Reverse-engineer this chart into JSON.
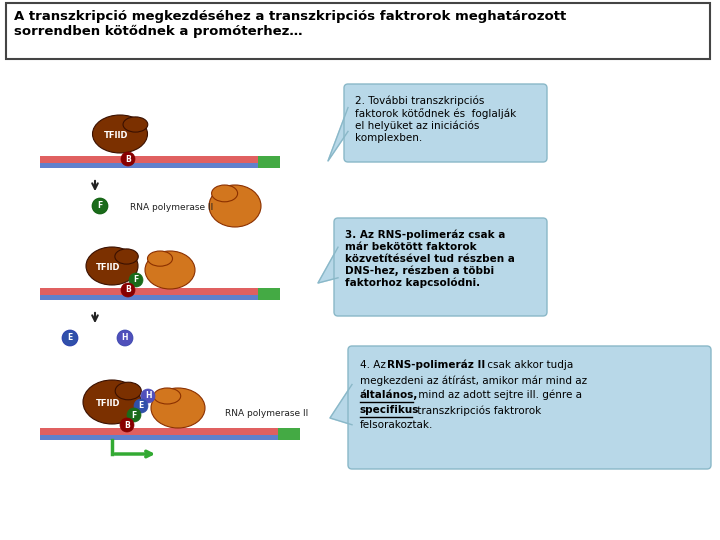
{
  "bg_color": "#ffffff",
  "title_text": "A transzkripció megkezdéséhez a transzkripciós faktrorok meghatározott\nsorrendben kötődnek a promóterhez…",
  "bubble_bg": "#b8d8e8",
  "bubble_border": "#8ab8c8",
  "bubble2_text": "2. További transzkripciós\nfaktorok kötődnek és  foglalják\nel helyüket az iniciációs\nkomplexben.",
  "bubble3_text": "3. Az RNS-polimeráz csak a\nmár bekötött faktorok\nközvetítésével tud részben a\nDNS-hez, részben a többi\nfaktorhoz kapcsolódni.",
  "dna_top_color": "#e06060",
  "dna_bottom_color": "#6080cc",
  "dna_stripe_color": "#44aa44",
  "tfiid_color": "#7B3000",
  "rna_pol_color": "#D2761E",
  "label_b_color": "#880000",
  "label_f_color": "#1a6b1a",
  "label_e_color": "#3050aa",
  "label_h_color": "#5050bb",
  "arrow_color": "#222222",
  "green_arrow": "#33aa33"
}
